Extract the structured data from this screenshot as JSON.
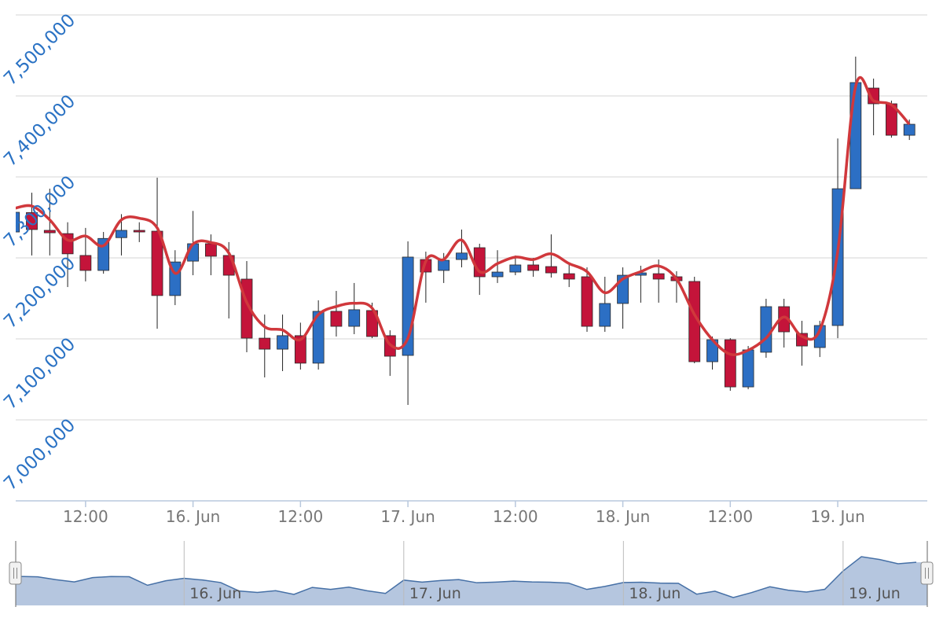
{
  "chart_data": {
    "type": "candlestick",
    "up_color": "#2c6fc4",
    "down_color": "#c4143a",
    "candles": {
      "open": [
        7232000,
        7256000,
        7234000,
        7230000,
        7203000,
        7184500,
        7225000,
        7234000,
        7233000,
        7153500,
        7196000,
        7217500,
        7203000,
        7173800,
        7100900,
        7087300,
        7104000,
        7070000,
        7134000,
        7115500,
        7135000,
        7104000,
        7079600,
        7198000,
        7184500,
        7198000,
        7212600,
        7176700,
        7182500,
        7191300,
        7189300,
        7180500,
        7176700,
        7115500,
        7143700,
        7178600,
        7180500,
        7176700,
        7170900,
        7071800,
        7099000,
        7040700,
        7083500,
        7139800,
        7106800,
        7089300,
        7116500,
        7285400,
        7409700,
        7390300,
        7351400
      ],
      "high": [
        7264000,
        7280500,
        7285500,
        7244000,
        7237000,
        7232000,
        7254000,
        7244000,
        7299000,
        7209500,
        7258000,
        7229000,
        7219500,
        7196100,
        7130000,
        7130000,
        7120000,
        7147600,
        7159200,
        7169000,
        7144700,
        7110600,
        7220400,
        7207700,
        7206000,
        7235000,
        7217500,
        7209500,
        7203000,
        7200000,
        7229000,
        7193200,
        7188300,
        7176700,
        7188300,
        7190300,
        7198000,
        7183500,
        7176700,
        7102900,
        7100900,
        7091200,
        7149500,
        7149500,
        7122300,
        7122300,
        7347500,
        7448500,
        7421400,
        7394200,
        7370900
      ],
      "low": [
        7227000,
        7203000,
        7203000,
        7164000,
        7171000,
        7180500,
        7203000,
        7219500,
        7112500,
        7141700,
        7178600,
        7178600,
        7125200,
        7083500,
        7052400,
        7060200,
        7062100,
        7062100,
        7102900,
        7105800,
        7100900,
        7054300,
        7018400,
        7144700,
        7169000,
        7188300,
        7154300,
        7169000,
        7178600,
        7176700,
        7175700,
        7164000,
        7108700,
        7108700,
        7112600,
        7144700,
        7144700,
        7144700,
        7069900,
        7062100,
        7035900,
        7037800,
        7076700,
        7089300,
        7066900,
        7077600,
        7100900,
        7285400,
        7351400,
        7348500,
        7345600
      ],
      "close": [
        7256300,
        7235000,
        7231000,
        7205000,
        7184500,
        7224000,
        7234000,
        7232000,
        7153500,
        7195000,
        7217500,
        7202000,
        7178600,
        7100900,
        7087300,
        7104000,
        7070000,
        7134000,
        7115500,
        7136000,
        7102900,
        7078600,
        7201000,
        7182500,
        7197000,
        7206000,
        7176700,
        7182500,
        7191300,
        7184500,
        7181500,
        7173800,
        7115500,
        7143700,
        7178600,
        7181500,
        7173800,
        7171800,
        7071800,
        7099000,
        7040700,
        7086400,
        7139800,
        7108700,
        7091200,
        7116500,
        7285400,
        7416500,
        7390300,
        7351400,
        7365000
      ]
    },
    "line": {
      "color": "#d0383c",
      "values": [
        7261000,
        7264000,
        7247000,
        7222000,
        7227000,
        7215000,
        7247000,
        7249000,
        7237000,
        7181000,
        7217000,
        7219000,
        7206000,
        7145000,
        7115000,
        7111000,
        7099000,
        7130000,
        7140000,
        7144000,
        7138000,
        7093000,
        7101000,
        7196000,
        7198000,
        7222000,
        7183000,
        7193000,
        7201000,
        7198000,
        7205000,
        7193000,
        7183000,
        7157000,
        7174000,
        7183000,
        7190000,
        7174000,
        7130000,
        7099000,
        7081000,
        7086000,
        7101000,
        7127000,
        7103000,
        7111000,
        7208000,
        7412000,
        7394000,
        7389000,
        7365000
      ]
    },
    "xlim": [
      0.1,
      51
    ],
    "xticks": [
      {
        "value": 4,
        "label": "12:00"
      },
      {
        "value": 10,
        "label": "16. Jun"
      },
      {
        "value": 16,
        "label": "12:00"
      },
      {
        "value": 22,
        "label": "17. Jun"
      },
      {
        "value": 28,
        "label": "12:00"
      },
      {
        "value": 34,
        "label": "18. Jun"
      },
      {
        "value": 40,
        "label": "12:00"
      },
      {
        "value": 46,
        "label": "19. Jun"
      }
    ],
    "ylim": [
      6900000,
      7500000
    ],
    "yticks": [
      {
        "value": 7000000,
        "label": "7,000,000"
      },
      {
        "value": 7100000,
        "label": "7,100,000"
      },
      {
        "value": 7200000,
        "label": "7,200,000"
      },
      {
        "value": 7300000,
        "label": "7,300,000"
      },
      {
        "value": 7400000,
        "label": "7,400,000"
      },
      {
        "value": 7500000,
        "label": "7,500,000"
      }
    ],
    "grid": true,
    "navigator": {
      "color": "#b5c6df",
      "line_color": "#4670a6",
      "xlim": [
        0.8,
        50.6
      ],
      "xticks": [
        {
          "value": 10,
          "label": "16. Jun"
        },
        {
          "value": 22,
          "label": "17. Jun"
        },
        {
          "value": 34,
          "label": "18. Jun"
        },
        {
          "value": 46,
          "label": "19. Jun"
        }
      ]
    }
  }
}
